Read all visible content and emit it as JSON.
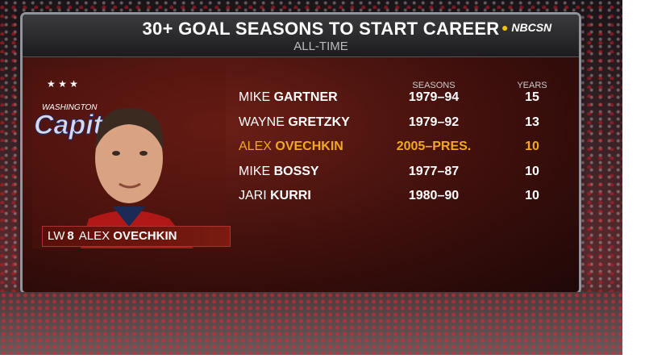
{
  "header": {
    "title": "30+ GOAL SEASONS TO START CAREER",
    "subtitle": "ALL-TIME",
    "logo": "NBCSN"
  },
  "table": {
    "columns": [
      "SEASONS",
      "YEARS"
    ],
    "highlight_color": "#f2a922",
    "rows": [
      {
        "first": "MIKE",
        "last": "GARTNER",
        "seasons": "1979–94",
        "years": 15
      },
      {
        "first": "WAYNE",
        "last": "GRETZKY",
        "seasons": "1979–92",
        "years": 13
      },
      {
        "first": "ALEX",
        "last": "OVECHKIN",
        "seasons": "2005–PRES.",
        "years": 10,
        "highlighted": true
      },
      {
        "first": "MIKE",
        "last": "BOSSY",
        "seasons": "1977–87",
        "years": 10
      },
      {
        "first": "JARI",
        "last": "KURRI",
        "seasons": "1980–90",
        "years": 10
      }
    ]
  },
  "player": {
    "position": "LW",
    "number": "8",
    "first": "ALEX",
    "last": "OVECHKIN",
    "team_city": "WASHINGTON",
    "team_name": "Capitals"
  }
}
